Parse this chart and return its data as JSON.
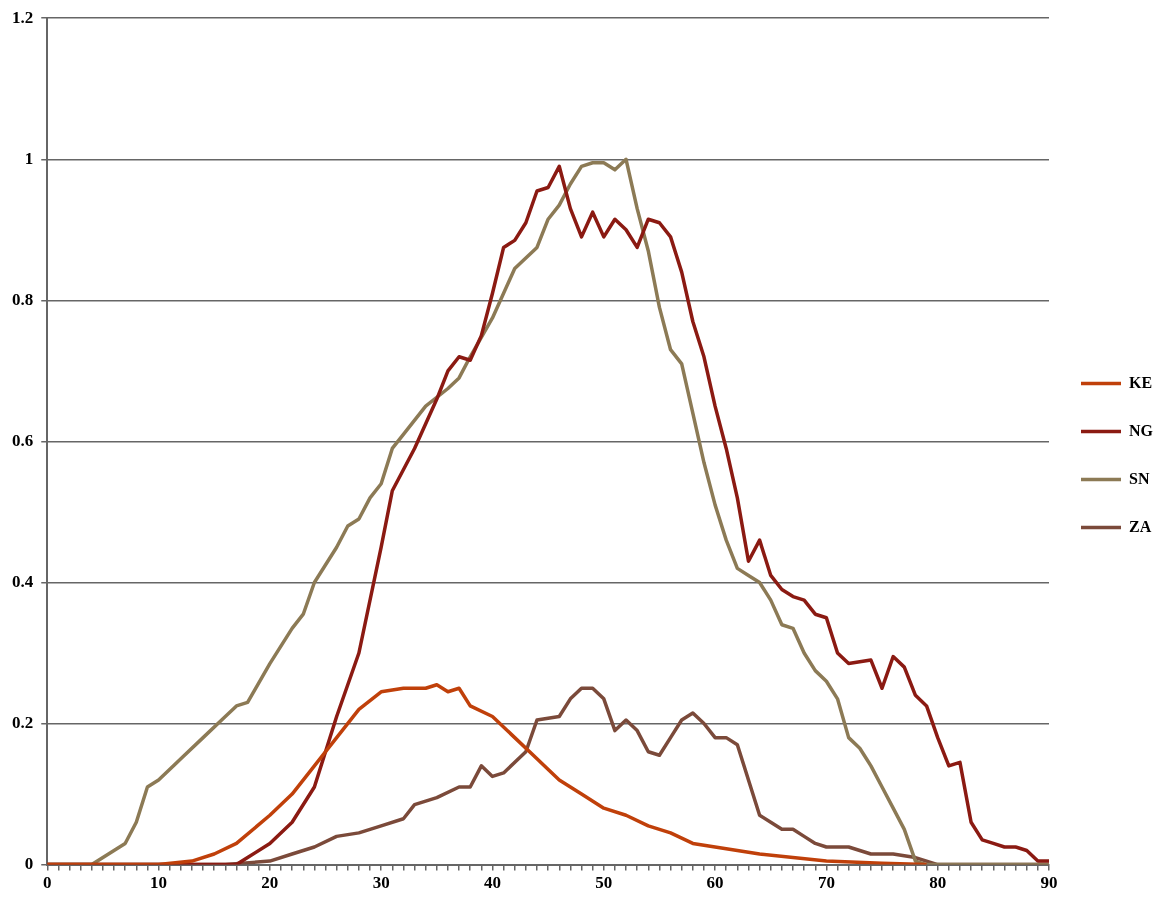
{
  "chart_data": {
    "type": "line",
    "xlim": [
      0,
      90
    ],
    "xticks": [
      0,
      10,
      20,
      30,
      40,
      50,
      60,
      70,
      80,
      90
    ],
    "ylim": [
      0,
      1.2
    ],
    "yticks": [
      0,
      0.2,
      0.4,
      0.6,
      0.8,
      1,
      1.2
    ],
    "grid": "y",
    "legend": "right",
    "marker": "none",
    "line_style": "solid",
    "series": [
      {
        "name": "KE",
        "color": "#c0400a",
        "x": [
          0,
          10,
          13,
          15,
          17,
          20,
          22,
          24,
          26,
          28,
          30,
          32,
          34,
          35,
          36,
          37,
          38,
          40,
          42,
          44,
          46,
          48,
          50,
          52,
          54,
          56,
          58,
          60,
          64,
          70,
          75,
          79
        ],
        "values": [
          0,
          0,
          0.005,
          0.015,
          0.03,
          0.07,
          0.1,
          0.14,
          0.18,
          0.22,
          0.245,
          0.25,
          0.25,
          0.255,
          0.245,
          0.25,
          0.225,
          0.21,
          0.18,
          0.15,
          0.12,
          0.1,
          0.08,
          0.07,
          0.055,
          0.045,
          0.03,
          0.025,
          0.015,
          0.005,
          0.002,
          0
        ]
      },
      {
        "name": "NG",
        "color": "#8b1a12",
        "x": [
          0,
          17,
          18,
          20,
          22,
          24,
          26,
          28,
          30,
          31,
          33,
          35,
          36,
          37,
          38,
          39,
          40,
          41,
          42,
          43,
          44,
          45,
          46,
          47,
          48,
          49,
          50,
          51,
          52,
          53,
          54,
          55,
          56,
          57,
          58,
          59,
          60,
          61,
          62,
          63,
          64,
          65,
          66,
          67,
          68,
          69,
          70,
          71,
          72,
          74,
          75,
          76,
          77,
          78,
          79,
          80,
          81,
          82,
          83,
          84,
          85,
          86,
          87,
          88,
          89,
          90
        ],
        "values": [
          0,
          0,
          0.01,
          0.03,
          0.06,
          0.11,
          0.21,
          0.3,
          0.45,
          0.53,
          0.59,
          0.66,
          0.7,
          0.72,
          0.715,
          0.75,
          0.81,
          0.875,
          0.885,
          0.91,
          0.955,
          0.96,
          0.99,
          0.93,
          0.89,
          0.925,
          0.89,
          0.915,
          0.9,
          0.875,
          0.915,
          0.91,
          0.89,
          0.84,
          0.77,
          0.72,
          0.65,
          0.59,
          0.52,
          0.43,
          0.46,
          0.41,
          0.39,
          0.38,
          0.375,
          0.355,
          0.35,
          0.3,
          0.285,
          0.29,
          0.25,
          0.295,
          0.28,
          0.24,
          0.225,
          0.18,
          0.14,
          0.145,
          0.06,
          0.035,
          0.03,
          0.025,
          0.025,
          0.02,
          0.005,
          0.005
        ]
      },
      {
        "name": "SN",
        "color": "#8c7a55",
        "x": [
          0,
          4,
          6,
          7,
          8,
          9,
          10,
          12,
          14,
          16,
          17,
          18,
          20,
          22,
          23,
          24,
          26,
          27,
          28,
          29,
          30,
          31,
          32,
          34,
          36,
          37,
          38,
          40,
          42,
          44,
          45,
          46,
          47,
          48,
          49,
          50,
          51,
          52,
          53,
          54,
          55,
          56,
          57,
          58,
          59,
          60,
          61,
          62,
          63,
          64,
          65,
          66,
          67,
          68,
          69,
          70,
          71,
          72,
          73,
          74,
          75,
          76,
          77,
          78,
          79,
          90
        ],
        "values": [
          0,
          0,
          0.02,
          0.03,
          0.06,
          0.11,
          0.12,
          0.15,
          0.18,
          0.21,
          0.225,
          0.23,
          0.285,
          0.335,
          0.355,
          0.4,
          0.45,
          0.48,
          0.49,
          0.52,
          0.54,
          0.59,
          0.61,
          0.65,
          0.675,
          0.69,
          0.72,
          0.775,
          0.845,
          0.875,
          0.915,
          0.935,
          0.965,
          0.99,
          0.995,
          0.995,
          0.985,
          1,
          0.93,
          0.87,
          0.79,
          0.73,
          0.71,
          0.64,
          0.57,
          0.51,
          0.46,
          0.42,
          0.41,
          0.4,
          0.375,
          0.34,
          0.335,
          0.3,
          0.275,
          0.26,
          0.235,
          0.18,
          0.165,
          0.14,
          0.11,
          0.08,
          0.05,
          0.005,
          0,
          0
        ]
      },
      {
        "name": "ZA",
        "color": "#7b4a3a",
        "x": [
          0,
          16,
          20,
          22,
          24,
          26,
          28,
          30,
          32,
          33,
          35,
          37,
          38,
          39,
          40,
          41,
          43,
          44,
          46,
          47,
          48,
          49,
          50,
          51,
          52,
          53,
          54,
          55,
          56,
          57,
          58,
          59,
          60,
          61,
          62,
          63,
          64,
          65,
          66,
          67,
          68,
          69,
          70,
          72,
          73,
          74,
          76,
          78,
          79,
          80,
          90
        ],
        "values": [
          0,
          0,
          0.005,
          0.015,
          0.025,
          0.04,
          0.045,
          0.055,
          0.065,
          0.085,
          0.095,
          0.11,
          0.11,
          0.14,
          0.125,
          0.13,
          0.16,
          0.205,
          0.21,
          0.235,
          0.25,
          0.25,
          0.235,
          0.19,
          0.205,
          0.19,
          0.16,
          0.155,
          0.18,
          0.205,
          0.215,
          0.2,
          0.18,
          0.18,
          0.17,
          0.12,
          0.07,
          0.06,
          0.05,
          0.05,
          0.04,
          0.03,
          0.025,
          0.025,
          0.02,
          0.015,
          0.015,
          0.01,
          0.005,
          0,
          0
        ]
      }
    ]
  }
}
